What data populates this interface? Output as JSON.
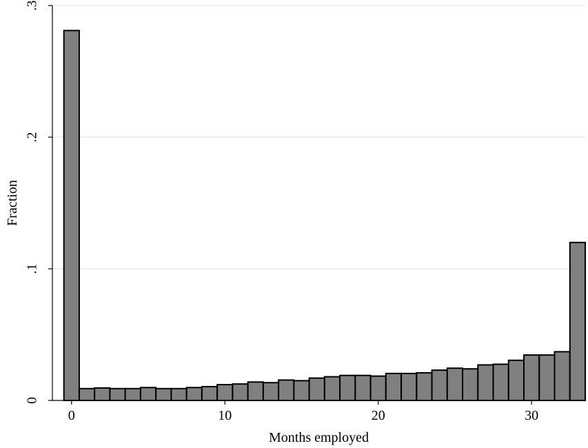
{
  "chart_data": {
    "type": "bar",
    "title": "",
    "xlabel": "Months employed",
    "ylabel": "Fraction",
    "x": [
      0,
      1,
      2,
      3,
      4,
      5,
      6,
      7,
      8,
      9,
      10,
      11,
      12,
      13,
      14,
      15,
      16,
      17,
      18,
      19,
      20,
      21,
      22,
      23,
      24,
      25,
      26,
      27,
      28,
      29,
      30,
      31,
      32,
      33
    ],
    "values": [
      0.281,
      0.009,
      0.0095,
      0.009,
      0.009,
      0.0098,
      0.009,
      0.009,
      0.0098,
      0.0105,
      0.012,
      0.0125,
      0.014,
      0.0135,
      0.0155,
      0.015,
      0.017,
      0.018,
      0.019,
      0.019,
      0.0185,
      0.0205,
      0.0205,
      0.021,
      0.023,
      0.0245,
      0.024,
      0.027,
      0.0275,
      0.0305,
      0.0345,
      0.0345,
      0.037,
      0.12
    ],
    "xlim": [
      -1.25,
      33.5
    ],
    "ylim": [
      0,
      0.3
    ],
    "xticks": [
      0,
      10,
      20,
      30
    ],
    "xtick_labels": [
      "0",
      "10",
      "20",
      "30"
    ],
    "yticks": [
      0,
      0.1,
      0.2,
      0.3
    ],
    "ytick_labels": [
      "0",
      ".1",
      ".2",
      ".3"
    ],
    "grid": true,
    "bar_color": "#808080",
    "bar_edge_color": "#000000",
    "grid_color": "#e6e6e6"
  }
}
